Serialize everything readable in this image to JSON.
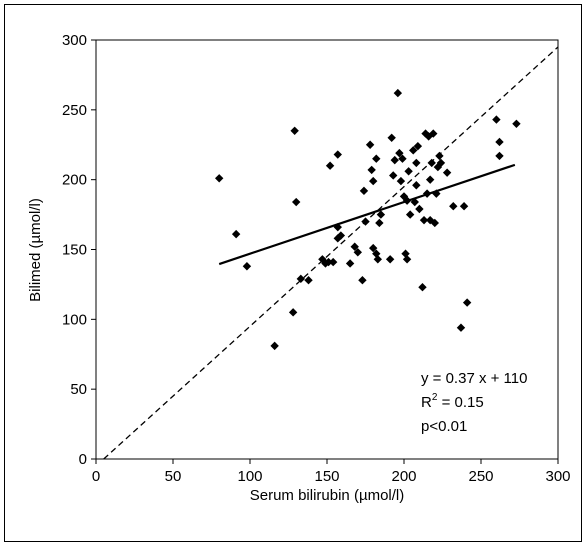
{
  "chart_data": {
    "type": "scatter",
    "title": "",
    "xlabel": "Serum bilirubin (µmol/l)",
    "ylabel": "Bilimed (µmol/l)",
    "xlim": [
      0,
      300
    ],
    "ylim": [
      0,
      300
    ],
    "x_ticks": [
      "0",
      "50",
      "100",
      "150",
      "200",
      "250",
      "300"
    ],
    "y_ticks": [
      "0",
      "50",
      "100",
      "150",
      "200",
      "250",
      "300"
    ],
    "grid": false,
    "legend": "none",
    "annotations": {
      "equation": "y = 0.37 x + 110",
      "r2_label": "R",
      "r2_sup": "2",
      "r2_value": " = 0.15",
      "p_value": "p<0.01"
    },
    "series": [
      {
        "marker": "diamond",
        "color": "#000000",
        "points": [
          [
            80,
            201
          ],
          [
            91,
            161
          ],
          [
            98,
            138
          ],
          [
            116,
            81
          ],
          [
            128,
            105
          ],
          [
            129,
            235
          ],
          [
            130,
            184
          ],
          [
            133,
            129
          ],
          [
            138,
            128
          ],
          [
            147,
            143
          ],
          [
            149,
            140
          ],
          [
            151,
            141
          ],
          [
            152,
            210
          ],
          [
            154,
            141
          ],
          [
            157,
            218
          ],
          [
            157,
            166
          ],
          [
            157,
            158
          ],
          [
            159,
            160
          ],
          [
            165,
            140
          ],
          [
            168,
            152
          ],
          [
            170,
            148
          ],
          [
            173,
            128
          ],
          [
            174,
            192
          ],
          [
            175,
            170
          ],
          [
            178,
            225
          ],
          [
            179,
            207
          ],
          [
            180,
            151
          ],
          [
            180,
            199
          ],
          [
            182,
            147
          ],
          [
            182,
            215
          ],
          [
            183,
            143
          ],
          [
            184,
            169
          ],
          [
            185,
            175
          ],
          [
            191,
            143
          ],
          [
            192,
            230
          ],
          [
            193,
            203
          ],
          [
            194,
            214
          ],
          [
            196,
            262
          ],
          [
            197,
            219
          ],
          [
            198,
            199
          ],
          [
            199,
            215
          ],
          [
            200,
            188
          ],
          [
            201,
            147
          ],
          [
            202,
            143
          ],
          [
            202,
            185
          ],
          [
            203,
            206
          ],
          [
            204,
            175
          ],
          [
            206,
            221
          ],
          [
            207,
            184
          ],
          [
            208,
            212
          ],
          [
            208,
            196
          ],
          [
            209,
            224
          ],
          [
            210,
            179
          ],
          [
            212,
            123
          ],
          [
            213,
            171
          ],
          [
            214,
            233
          ],
          [
            215,
            190
          ],
          [
            216,
            231
          ],
          [
            217,
            171
          ],
          [
            217,
            200
          ],
          [
            218,
            212
          ],
          [
            219,
            233
          ],
          [
            220,
            169
          ],
          [
            221,
            190
          ],
          [
            222,
            209
          ],
          [
            223,
            217
          ],
          [
            224,
            212
          ],
          [
            228,
            205
          ],
          [
            232,
            181
          ],
          [
            237,
            94
          ],
          [
            239,
            181
          ],
          [
            241,
            112
          ],
          [
            260,
            243
          ],
          [
            262,
            217
          ],
          [
            262,
            227
          ],
          [
            273,
            240
          ]
        ]
      },
      {
        "name": "",
        "type": "line",
        "style": "solid",
        "x": [
          80,
          272
        ],
        "y": [
          139.6,
          210.6
        ]
      },
      {
        "name": "",
        "type": "line",
        "style": "dashed",
        "x": [
          5,
          300
        ],
        "y": [
          0,
          295
        ]
      }
    ]
  }
}
